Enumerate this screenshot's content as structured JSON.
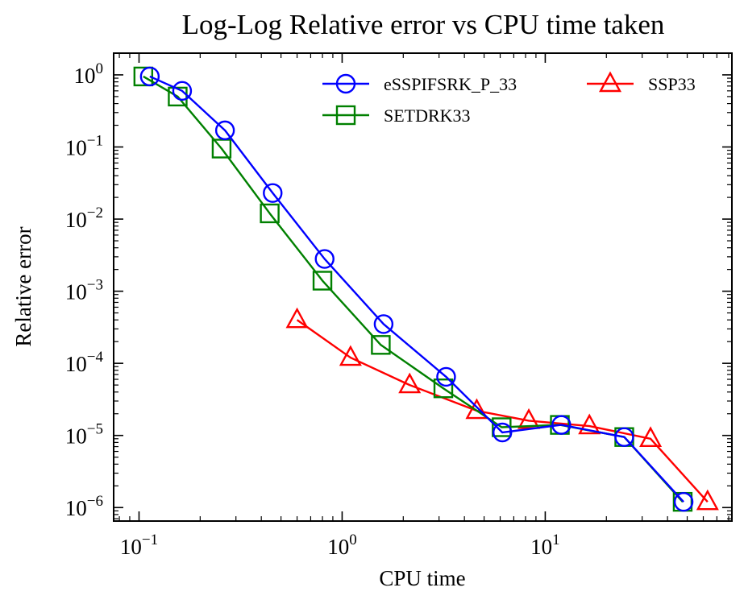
{
  "chart_data": {
    "type": "line",
    "title": "Log-Log Relative error vs CPU time taken",
    "xlabel": "CPU time",
    "ylabel": "Relative error",
    "xscale": "log",
    "yscale": "log",
    "xlim": [
      0.075,
      83
    ],
    "ylim": [
      6.5e-07,
      2.0
    ],
    "xticks": [
      {
        "value": 0.1,
        "base": "10",
        "exp": "−1"
      },
      {
        "value": 1,
        "base": "10",
        "exp": "0"
      },
      {
        "value": 10,
        "base": "10",
        "exp": "1"
      }
    ],
    "yticks": [
      {
        "value": 1,
        "base": "10",
        "exp": "0"
      },
      {
        "value": 0.1,
        "base": "10",
        "exp": "−1"
      },
      {
        "value": 0.01,
        "base": "10",
        "exp": "−2"
      },
      {
        "value": 0.001,
        "base": "10",
        "exp": "−3"
      },
      {
        "value": 0.0001,
        "base": "10",
        "exp": "−4"
      },
      {
        "value": 1e-05,
        "base": "10",
        "exp": "−5"
      },
      {
        "value": 1e-06,
        "base": "10",
        "exp": "−6"
      }
    ],
    "grid": false,
    "legend_position": "top-right",
    "legend_columns": 2,
    "series": [
      {
        "name": "eSSPIFSRK_P_33",
        "color": "#0000ff",
        "marker": "circle",
        "x": [
          0.113,
          0.163,
          0.265,
          0.455,
          0.82,
          1.6,
          3.25,
          6.15,
          12.0,
          24.5,
          48.0
        ],
        "y": [
          0.95,
          0.6,
          0.17,
          0.023,
          0.0028,
          0.00035,
          6.5e-05,
          1.1e-05,
          1.4e-05,
          9.5e-06,
          1.2e-06
        ]
      },
      {
        "name": "SETDRK33",
        "color": "#008000",
        "marker": "square",
        "x": [
          0.105,
          0.155,
          0.255,
          0.44,
          0.8,
          1.55,
          3.15,
          6.1,
          11.8,
          24.5,
          47.5
        ],
        "y": [
          0.95,
          0.5,
          0.095,
          0.012,
          0.0014,
          0.00018,
          4.5e-05,
          1.3e-05,
          1.4e-05,
          9.5e-06,
          1.2e-06
        ]
      },
      {
        "name": "SSP33",
        "color": "#ff0000",
        "marker": "triangle",
        "x": [
          0.6,
          1.1,
          2.15,
          4.6,
          8.3,
          16.5,
          33.0,
          63.0
        ],
        "y": [
          0.0004,
          0.00012,
          5e-05,
          2.2e-05,
          1.6e-05,
          1.35e-05,
          9e-06,
          1.2e-06
        ]
      }
    ]
  }
}
